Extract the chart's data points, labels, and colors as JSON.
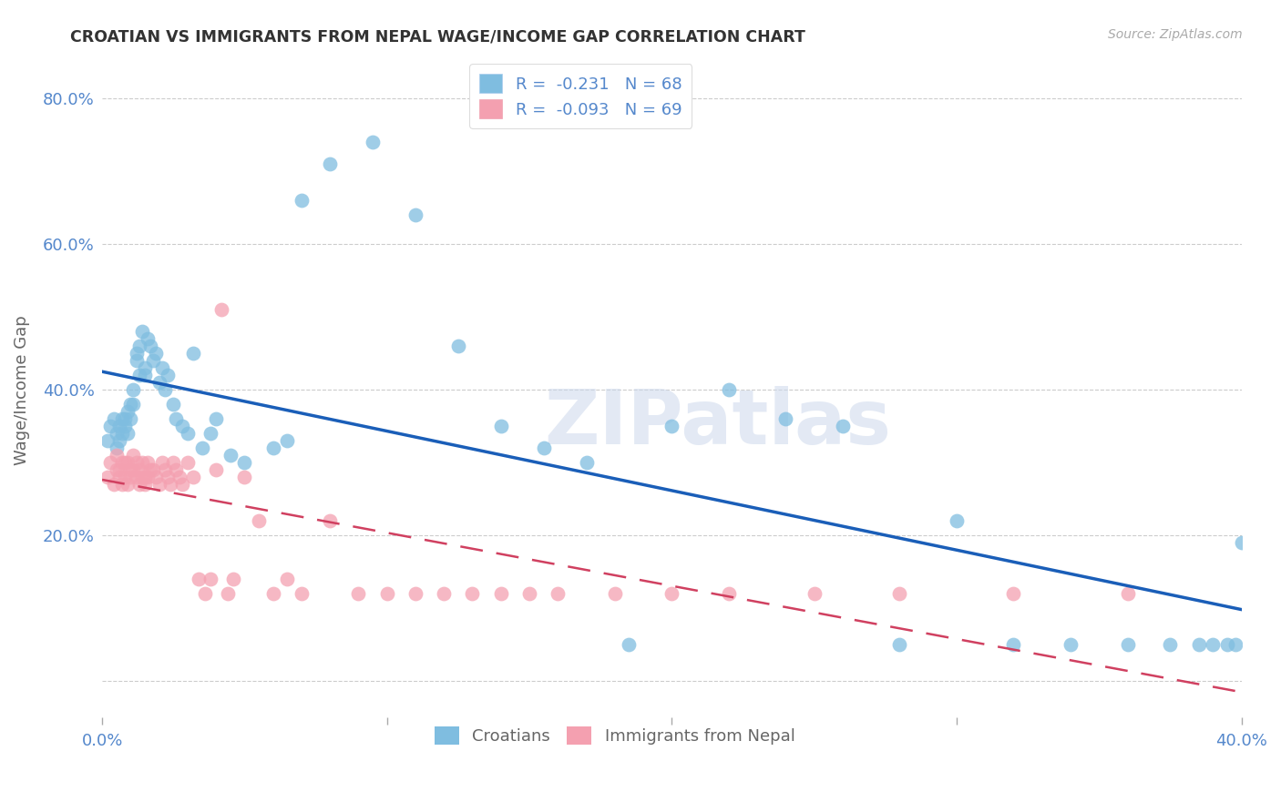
{
  "title": "CROATIAN VS IMMIGRANTS FROM NEPAL WAGE/INCOME GAP CORRELATION CHART",
  "source": "Source: ZipAtlas.com",
  "ylabel": "Wage/Income Gap",
  "xlim": [
    0.0,
    0.4
  ],
  "ylim": [
    -0.05,
    0.85
  ],
  "yticks": [
    0.0,
    0.2,
    0.4,
    0.6,
    0.8
  ],
  "ytick_labels": [
    "",
    "20.0%",
    "40.0%",
    "60.0%",
    "80.0%"
  ],
  "xticks": [
    0.0,
    0.1,
    0.2,
    0.3,
    0.4
  ],
  "xtick_labels": [
    "0.0%",
    "",
    "",
    "",
    "40.0%"
  ],
  "croatians_x": [
    0.002,
    0.003,
    0.004,
    0.005,
    0.005,
    0.006,
    0.006,
    0.007,
    0.007,
    0.008,
    0.008,
    0.009,
    0.009,
    0.01,
    0.01,
    0.011,
    0.011,
    0.012,
    0.012,
    0.013,
    0.013,
    0.014,
    0.015,
    0.015,
    0.016,
    0.017,
    0.018,
    0.019,
    0.02,
    0.021,
    0.022,
    0.023,
    0.025,
    0.026,
    0.028,
    0.03,
    0.032,
    0.035,
    0.038,
    0.04,
    0.045,
    0.05,
    0.06,
    0.065,
    0.07,
    0.08,
    0.095,
    0.11,
    0.125,
    0.14,
    0.155,
    0.17,
    0.185,
    0.2,
    0.22,
    0.24,
    0.26,
    0.28,
    0.3,
    0.32,
    0.34,
    0.36,
    0.375,
    0.385,
    0.39,
    0.395,
    0.398,
    0.4
  ],
  "croatians_y": [
    0.33,
    0.35,
    0.36,
    0.32,
    0.34,
    0.35,
    0.33,
    0.36,
    0.34,
    0.36,
    0.35,
    0.37,
    0.34,
    0.38,
    0.36,
    0.4,
    0.38,
    0.44,
    0.45,
    0.42,
    0.46,
    0.48,
    0.43,
    0.42,
    0.47,
    0.46,
    0.44,
    0.45,
    0.41,
    0.43,
    0.4,
    0.42,
    0.38,
    0.36,
    0.35,
    0.34,
    0.45,
    0.32,
    0.34,
    0.36,
    0.31,
    0.3,
    0.32,
    0.33,
    0.66,
    0.71,
    0.74,
    0.64,
    0.46,
    0.35,
    0.32,
    0.3,
    0.05,
    0.35,
    0.4,
    0.36,
    0.35,
    0.05,
    0.22,
    0.05,
    0.05,
    0.05,
    0.05,
    0.05,
    0.05,
    0.05,
    0.05,
    0.19
  ],
  "nepal_x": [
    0.002,
    0.003,
    0.004,
    0.005,
    0.005,
    0.006,
    0.006,
    0.007,
    0.007,
    0.008,
    0.008,
    0.009,
    0.009,
    0.01,
    0.01,
    0.011,
    0.011,
    0.012,
    0.012,
    0.013,
    0.013,
    0.014,
    0.014,
    0.015,
    0.015,
    0.016,
    0.016,
    0.017,
    0.018,
    0.019,
    0.02,
    0.021,
    0.022,
    0.023,
    0.024,
    0.025,
    0.026,
    0.027,
    0.028,
    0.03,
    0.032,
    0.034,
    0.036,
    0.038,
    0.04,
    0.042,
    0.044,
    0.046,
    0.05,
    0.055,
    0.06,
    0.065,
    0.07,
    0.08,
    0.09,
    0.1,
    0.11,
    0.12,
    0.13,
    0.14,
    0.15,
    0.16,
    0.18,
    0.2,
    0.22,
    0.25,
    0.28,
    0.32,
    0.36
  ],
  "nepal_y": [
    0.28,
    0.3,
    0.27,
    0.29,
    0.31,
    0.29,
    0.28,
    0.3,
    0.27,
    0.3,
    0.28,
    0.27,
    0.3,
    0.29,
    0.28,
    0.31,
    0.29,
    0.3,
    0.28,
    0.29,
    0.27,
    0.3,
    0.28,
    0.28,
    0.27,
    0.3,
    0.28,
    0.29,
    0.29,
    0.28,
    0.27,
    0.3,
    0.29,
    0.28,
    0.27,
    0.3,
    0.29,
    0.28,
    0.27,
    0.3,
    0.28,
    0.14,
    0.12,
    0.14,
    0.29,
    0.51,
    0.12,
    0.14,
    0.28,
    0.22,
    0.12,
    0.14,
    0.12,
    0.22,
    0.12,
    0.12,
    0.12,
    0.12,
    0.12,
    0.12,
    0.12,
    0.12,
    0.12,
    0.12,
    0.12,
    0.12,
    0.12,
    0.12,
    0.12
  ],
  "blue_color": "#7fbde0",
  "pink_color": "#f4a0b0",
  "blue_line_color": "#1a5eb8",
  "pink_line_color": "#d04060",
  "title_color": "#333333",
  "axis_color": "#5588cc",
  "R_croatians": -0.231,
  "N_croatians": 68,
  "R_nepal": -0.093,
  "N_nepal": 69
}
